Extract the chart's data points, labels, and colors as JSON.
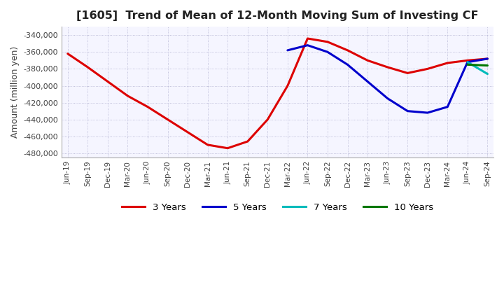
{
  "title": "[1605]  Trend of Mean of 12-Month Moving Sum of Investing CF",
  "ylabel": "Amount (million yen)",
  "ylim": [
    -485000,
    -330000
  ],
  "yticks": [
    -480000,
    -460000,
    -440000,
    -420000,
    -400000,
    -380000,
    -360000,
    -340000
  ],
  "background_color": "#f5f5ff",
  "grid_color": "#aaaacc",
  "legend_labels": [
    "3 Years",
    "5 Years",
    "7 Years",
    "10 Years"
  ],
  "legend_colors": [
    "#dd0000",
    "#0000cc",
    "#00bbbb",
    "#007700"
  ],
  "x_labels": [
    "Jun-19",
    "Sep-19",
    "Dec-19",
    "Mar-20",
    "Jun-20",
    "Sep-20",
    "Dec-20",
    "Mar-21",
    "Jun-21",
    "Sep-21",
    "Dec-21",
    "Mar-22",
    "Jun-22",
    "Sep-22",
    "Dec-22",
    "Mar-23",
    "Jun-23",
    "Sep-23",
    "Dec-23",
    "Mar-24",
    "Jun-24",
    "Sep-24"
  ],
  "series": {
    "3y": [
      -362000,
      -378000,
      -395000,
      -412000,
      -425000,
      -440000,
      -455000,
      -470000,
      -474000,
      -466000,
      -440000,
      -400000,
      -344000,
      -348000,
      -358000,
      -370000,
      -378000,
      -385000,
      -380000,
      -373000,
      -370000,
      -368000
    ],
    "5y": [
      null,
      null,
      null,
      null,
      null,
      null,
      null,
      null,
      null,
      null,
      null,
      -358000,
      -352000,
      -360000,
      -375000,
      -395000,
      -415000,
      -430000,
      -432000,
      -425000,
      -372000,
      -368000
    ],
    "7y": [
      null,
      null,
      null,
      null,
      null,
      null,
      null,
      null,
      null,
      null,
      null,
      null,
      null,
      null,
      null,
      null,
      null,
      null,
      null,
      null,
      -372000,
      -386000
    ],
    "10y": [
      null,
      null,
      null,
      null,
      null,
      null,
      null,
      null,
      null,
      null,
      null,
      null,
      null,
      null,
      null,
      null,
      null,
      null,
      null,
      null,
      -375000,
      -376000
    ]
  }
}
